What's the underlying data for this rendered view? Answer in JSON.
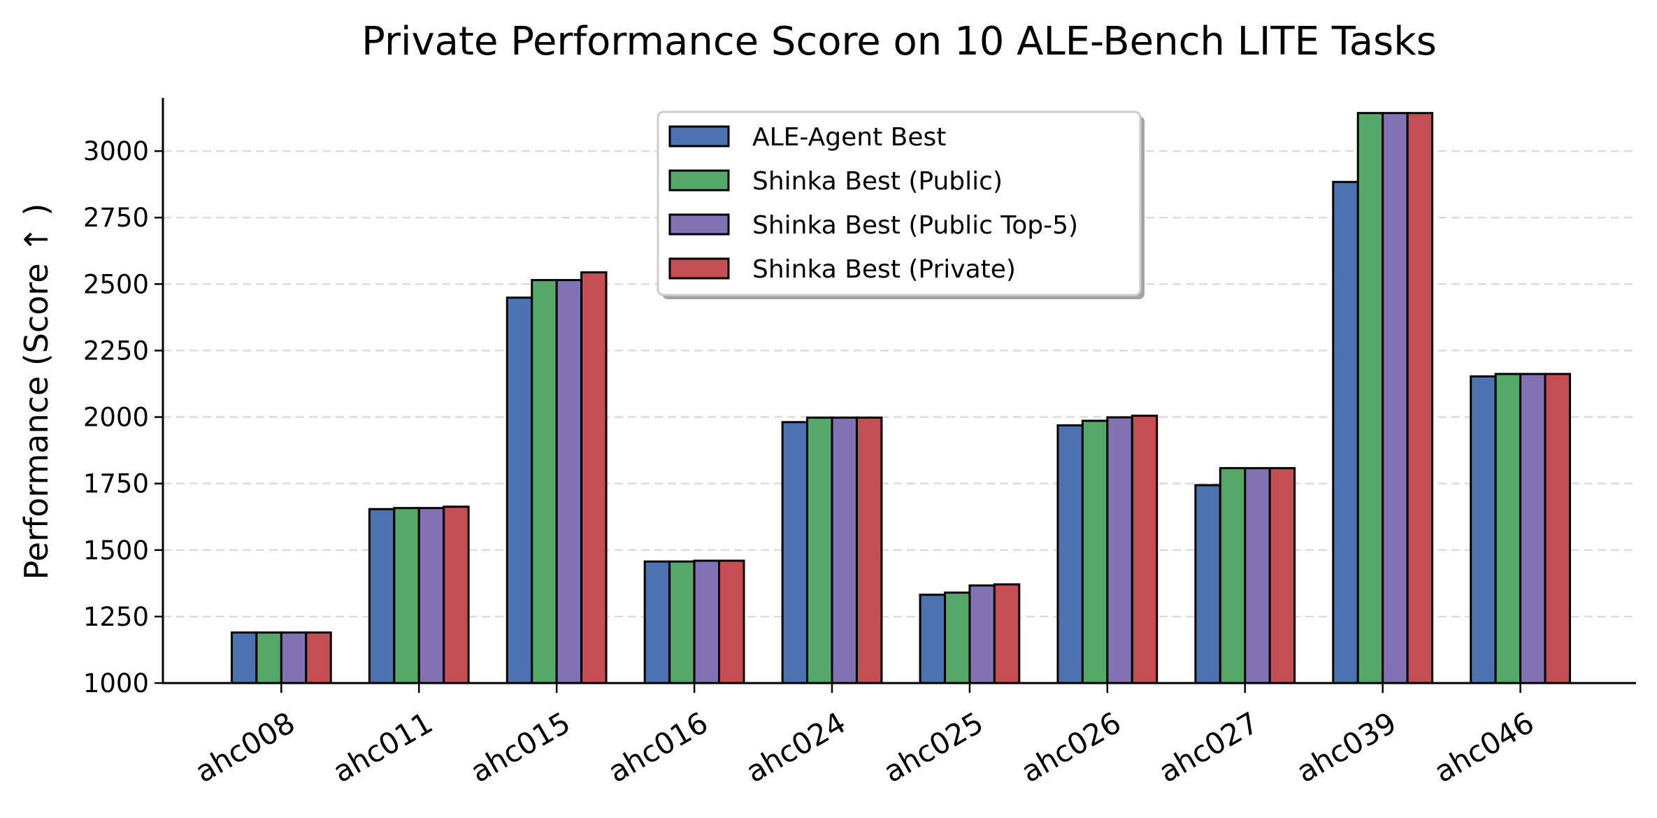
{
  "chart_data": {
    "type": "bar",
    "title": "Private Performance Score on 10 ALE-Bench LITE Tasks",
    "xlabel": "",
    "ylabel": "Performance (Score ↑ )",
    "ylim": [
      1000,
      3200
    ],
    "yticks": [
      1000,
      1250,
      1500,
      1750,
      2000,
      2250,
      2500,
      2750,
      3000
    ],
    "grid": "y-dashed",
    "legend_position": "top-center",
    "categories": [
      "ahc008",
      "ahc011",
      "ahc015",
      "ahc016",
      "ahc024",
      "ahc025",
      "ahc026",
      "ahc027",
      "ahc039",
      "ahc046"
    ],
    "series": [
      {
        "name": "ALE-Agent Best",
        "color": "#4c72b0",
        "values": [
          1190,
          1654,
          2449,
          1457,
          1981,
          1332,
          1969,
          1744,
          2884,
          2153
        ]
      },
      {
        "name": "Shinka Best (Public)",
        "color": "#55a868",
        "values": [
          1190,
          1658,
          2515,
          1457,
          1998,
          1340,
          1986,
          1808,
          3143,
          2162
        ]
      },
      {
        "name": "Shinka Best (Public Top-5)",
        "color": "#8172b3",
        "values": [
          1190,
          1658,
          2515,
          1460,
          1998,
          1367,
          1999,
          1808,
          3143,
          2162
        ]
      },
      {
        "name": "Shinka Best (Private)",
        "color": "#c44e52",
        "values": [
          1190,
          1663,
          2544,
          1460,
          1998,
          1371,
          2005,
          1808,
          3143,
          2162
        ]
      }
    ]
  }
}
